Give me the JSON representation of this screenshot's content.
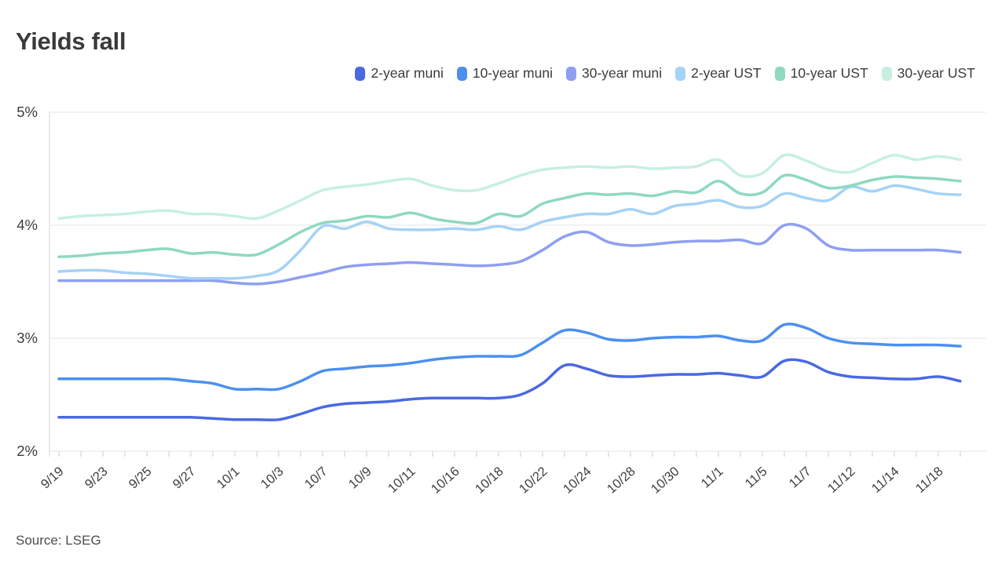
{
  "header": {
    "title": "Yields fall"
  },
  "source": {
    "label": "Source: LSEG"
  },
  "legend": [
    {
      "label": "2-year muni",
      "color": "#4a69e2"
    },
    {
      "label": "10-year muni",
      "color": "#4b90ee"
    },
    {
      "label": "30-year muni",
      "color": "#8e9ff2"
    },
    {
      "label": "2-year UST",
      "color": "#a5d2f7"
    },
    {
      "label": "10-year UST",
      "color": "#8ed9bf"
    },
    {
      "label": "30-year UST",
      "color": "#c6f0de"
    }
  ],
  "chart_data": {
    "type": "line",
    "title": "Yields fall",
    "xlabel": "",
    "ylabel": "",
    "ylim": [
      2,
      5
    ],
    "grid": "horizontal",
    "legend_position": "top",
    "y_ticks": [
      {
        "label": "5%",
        "value": 5
      },
      {
        "label": "4%",
        "value": 4
      },
      {
        "label": "3%",
        "value": 3
      },
      {
        "label": "2%",
        "value": 2
      }
    ],
    "x": [
      "9/19",
      "9/20",
      "9/23",
      "9/24",
      "9/25",
      "9/26",
      "9/27",
      "9/30",
      "10/1",
      "10/2",
      "10/3",
      "10/4",
      "10/7",
      "10/8",
      "10/9",
      "10/10",
      "10/11",
      "10/15",
      "10/16",
      "10/17",
      "10/18",
      "10/21",
      "10/22",
      "10/23",
      "10/24",
      "10/25",
      "10/28",
      "10/29",
      "10/30",
      "10/31",
      "11/1",
      "11/4",
      "11/5",
      "11/6",
      "11/7",
      "11/8",
      "11/12",
      "11/13",
      "11/14",
      "11/15",
      "11/18",
      "11/19"
    ],
    "x_labels_shown": [
      "9/19",
      "9/23",
      "9/25",
      "9/27",
      "10/1",
      "10/3",
      "10/7",
      "10/9",
      "10/11",
      "10/16",
      "10/18",
      "10/22",
      "10/24",
      "10/28",
      "10/30",
      "11/1",
      "11/5",
      "11/7",
      "11/12",
      "11/14",
      "11/18"
    ],
    "series": [
      {
        "name": "2-year muni",
        "color": "#4a69e2",
        "values": [
          2.3,
          2.3,
          2.3,
          2.3,
          2.3,
          2.3,
          2.3,
          2.29,
          2.28,
          2.28,
          2.28,
          2.33,
          2.39,
          2.42,
          2.43,
          2.44,
          2.46,
          2.47,
          2.47,
          2.47,
          2.47,
          2.5,
          2.6,
          2.76,
          2.73,
          2.67,
          2.66,
          2.67,
          2.68,
          2.68,
          2.69,
          2.67,
          2.66,
          2.8,
          2.79,
          2.7,
          2.66,
          2.65,
          2.64,
          2.64,
          2.66,
          2.62
        ]
      },
      {
        "name": "10-year muni",
        "color": "#4b90ee",
        "values": [
          2.64,
          2.64,
          2.64,
          2.64,
          2.64,
          2.64,
          2.62,
          2.6,
          2.55,
          2.55,
          2.55,
          2.62,
          2.71,
          2.73,
          2.75,
          2.76,
          2.78,
          2.81,
          2.83,
          2.84,
          2.84,
          2.85,
          2.96,
          3.07,
          3.05,
          2.99,
          2.98,
          3.0,
          3.01,
          3.01,
          3.02,
          2.98,
          2.98,
          3.12,
          3.09,
          3.0,
          2.96,
          2.95,
          2.94,
          2.94,
          2.94,
          2.93
        ]
      },
      {
        "name": "30-year muni",
        "color": "#8e9ff2",
        "values": [
          3.51,
          3.51,
          3.51,
          3.51,
          3.51,
          3.51,
          3.51,
          3.51,
          3.49,
          3.48,
          3.5,
          3.54,
          3.58,
          3.63,
          3.65,
          3.66,
          3.67,
          3.66,
          3.65,
          3.64,
          3.65,
          3.68,
          3.78,
          3.9,
          3.94,
          3.85,
          3.82,
          3.83,
          3.85,
          3.86,
          3.86,
          3.87,
          3.84,
          4.0,
          3.97,
          3.82,
          3.78,
          3.78,
          3.78,
          3.78,
          3.78,
          3.76
        ]
      },
      {
        "name": "2-year UST",
        "color": "#a5d2f7",
        "values": [
          3.59,
          3.6,
          3.6,
          3.58,
          3.57,
          3.55,
          3.53,
          3.53,
          3.53,
          3.55,
          3.6,
          3.78,
          3.99,
          3.97,
          4.03,
          3.97,
          3.96,
          3.96,
          3.97,
          3.96,
          3.99,
          3.96,
          4.03,
          4.07,
          4.1,
          4.1,
          4.14,
          4.1,
          4.17,
          4.19,
          4.22,
          4.16,
          4.17,
          4.28,
          4.24,
          4.22,
          4.34,
          4.3,
          4.35,
          4.32,
          4.28,
          4.27
        ]
      },
      {
        "name": "10-year UST",
        "color": "#8ed9bf",
        "values": [
          3.72,
          3.73,
          3.75,
          3.76,
          3.78,
          3.79,
          3.75,
          3.76,
          3.74,
          3.74,
          3.83,
          3.94,
          4.02,
          4.04,
          4.08,
          4.07,
          4.11,
          4.06,
          4.03,
          4.02,
          4.1,
          4.08,
          4.19,
          4.24,
          4.28,
          4.27,
          4.28,
          4.26,
          4.3,
          4.29,
          4.39,
          4.28,
          4.29,
          4.44,
          4.4,
          4.33,
          4.35,
          4.4,
          4.43,
          4.42,
          4.41,
          4.39
        ]
      },
      {
        "name": "30-year UST",
        "color": "#c6f0de",
        "values": [
          4.06,
          4.08,
          4.09,
          4.1,
          4.12,
          4.13,
          4.1,
          4.1,
          4.08,
          4.06,
          4.13,
          4.22,
          4.31,
          4.34,
          4.36,
          4.39,
          4.41,
          4.35,
          4.31,
          4.31,
          4.37,
          4.44,
          4.49,
          4.51,
          4.52,
          4.51,
          4.52,
          4.5,
          4.51,
          4.52,
          4.58,
          4.44,
          4.46,
          4.62,
          4.57,
          4.49,
          4.47,
          4.55,
          4.62,
          4.58,
          4.61,
          4.58
        ]
      }
    ]
  }
}
